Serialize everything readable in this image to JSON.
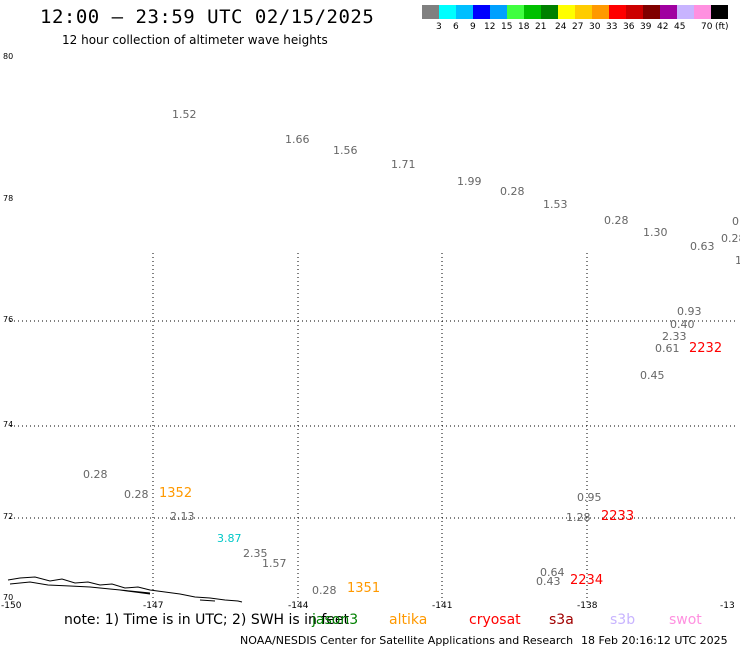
{
  "header": {
    "title": "12:00 – 23:59 UTC 02/15/2025",
    "subtitle": "12 hour collection of altimeter wave heights"
  },
  "scale": {
    "unit_label": "(ft)",
    "steps": [
      {
        "label": "",
        "color": "#808080"
      },
      {
        "label": "3",
        "color": "#00ffff"
      },
      {
        "label": "6",
        "color": "#00bfff"
      },
      {
        "label": "9",
        "color": "#0000ff"
      },
      {
        "label": "12",
        "color": "#00a0ff"
      },
      {
        "label": "15",
        "color": "#40ff40"
      },
      {
        "label": "18",
        "color": "#00c000"
      },
      {
        "label": "21",
        "color": "#008000"
      },
      {
        "label": "24",
        "color": "#ffff00"
      },
      {
        "label": "27",
        "color": "#ffcc00"
      },
      {
        "label": "30",
        "color": "#ff9900"
      },
      {
        "label": "33",
        "color": "#ff0000"
      },
      {
        "label": "36",
        "color": "#cc0000"
      },
      {
        "label": "39",
        "color": "#800000"
      },
      {
        "label": "42",
        "color": "#a000a0"
      },
      {
        "label": "45",
        "color": "#c8b4ff"
      },
      {
        "label": "70",
        "color": "#ff90e0"
      },
      {
        "label": "",
        "color": "#000000"
      }
    ]
  },
  "axes": {
    "lat_labels": [
      "80",
      "78",
      "76",
      "74",
      "72",
      "70"
    ],
    "lon_labels": [
      "-150",
      "-147",
      "-144",
      "-141",
      "-138",
      "-13"
    ]
  },
  "waves": [
    {
      "v": "1.52"
    },
    {
      "v": "1.66"
    },
    {
      "v": "1.56"
    },
    {
      "v": "1.71"
    },
    {
      "v": "1.99"
    },
    {
      "v": "0.28"
    },
    {
      "v": "1.53"
    },
    {
      "v": "0.28"
    },
    {
      "v": "1.30"
    },
    {
      "v": "0.63"
    },
    {
      "v": "0"
    },
    {
      "v": "0.28"
    },
    {
      "v": "1"
    },
    {
      "v": "0.93"
    },
    {
      "v": "0.40"
    },
    {
      "v": "2.33"
    },
    {
      "v": "0.61"
    },
    {
      "v": "0.45"
    },
    {
      "v": "0.28"
    },
    {
      "v": "0.28"
    },
    {
      "v": "2.13"
    },
    {
      "v": "3.87"
    },
    {
      "v": "2.35"
    },
    {
      "v": "1.57"
    },
    {
      "v": "0.28"
    },
    {
      "v": "0.95"
    },
    {
      "v": "1.28"
    },
    {
      "v": "0.64"
    },
    {
      "v": "0.43"
    }
  ],
  "passes": [
    {
      "label": "2232",
      "color": "#ff0000"
    },
    {
      "label": "1352",
      "color": "#ff9900"
    },
    {
      "label": "2233",
      "color": "#ff0000"
    },
    {
      "label": "2234",
      "color": "#ff0000"
    },
    {
      "label": "1351",
      "color": "#ff9900"
    }
  ],
  "footer": {
    "note": "note: 1) Time is in UTC; 2) SWH is in feet",
    "legend": [
      {
        "label": "jason3",
        "color": "#008000"
      },
      {
        "label": "altika",
        "color": "#ff9900"
      },
      {
        "label": "cryosat",
        "color": "#ff0000"
      },
      {
        "label": "s3a",
        "color": "#a00000"
      },
      {
        "label": "s3b",
        "color": "#c8b4ff"
      },
      {
        "label": "swot",
        "color": "#ff90e0"
      }
    ],
    "credit": "NOAA/NESDIS Center for Satellite Applications and Research",
    "timestamp": "18 Feb 20:16:12 UTC 2025"
  }
}
